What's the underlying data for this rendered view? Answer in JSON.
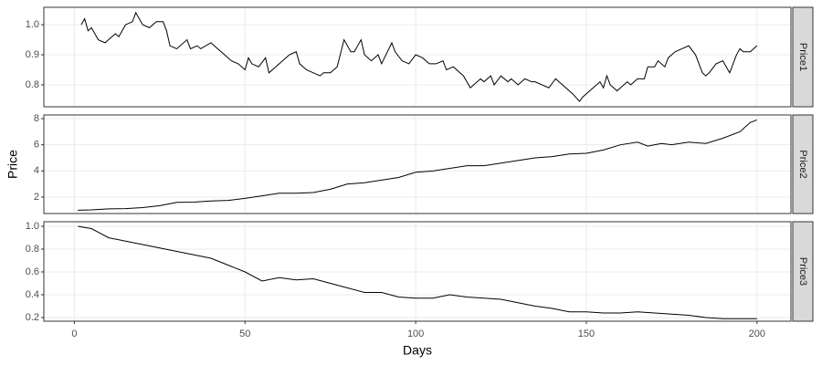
{
  "chart_data": [
    {
      "type": "line",
      "strip": "Price1",
      "color": "#000000",
      "grid": true,
      "ylim": [
        0.727,
        1.058
      ],
      "yticks": [
        0.8,
        0.9,
        {
          "value": 1,
          "label": "1.0"
        }
      ],
      "x": [
        2,
        3,
        4,
        5,
        7,
        9,
        10,
        12,
        13,
        15,
        17,
        18,
        20,
        22,
        24,
        26,
        27,
        28,
        30,
        33,
        34,
        36,
        37,
        40,
        42,
        44,
        46,
        48,
        50,
        51,
        52,
        54,
        56,
        57,
        59,
        61,
        63,
        65,
        66,
        68,
        70,
        72,
        73,
        75,
        77,
        79,
        81,
        82,
        84,
        85,
        87,
        89,
        90,
        93,
        94,
        96,
        98,
        100,
        102,
        104,
        106,
        108,
        109,
        111,
        113,
        114,
        116,
        117,
        119,
        120,
        122,
        123,
        125,
        127,
        128,
        130,
        132,
        134,
        135,
        137,
        139,
        141,
        142,
        144,
        146,
        148,
        149,
        151,
        152,
        154,
        155,
        156,
        157,
        159,
        160,
        162,
        163,
        165,
        167,
        168,
        170,
        171,
        173,
        174,
        176,
        178,
        180,
        182,
        184,
        185,
        186,
        188,
        190,
        191,
        192,
        194,
        195,
        196,
        198,
        199,
        200
      ],
      "values": [
        1.0,
        1.02,
        0.98,
        0.99,
        0.95,
        0.94,
        0.95,
        0.97,
        0.96,
        1.0,
        1.01,
        1.04,
        1.0,
        0.99,
        1.01,
        1.01,
        0.98,
        0.93,
        0.92,
        0.95,
        0.92,
        0.93,
        0.92,
        0.94,
        0.92,
        0.9,
        0.88,
        0.87,
        0.85,
        0.89,
        0.87,
        0.86,
        0.89,
        0.84,
        0.86,
        0.88,
        0.9,
        0.91,
        0.87,
        0.85,
        0.84,
        0.83,
        0.84,
        0.84,
        0.86,
        0.95,
        0.91,
        0.91,
        0.95,
        0.9,
        0.88,
        0.9,
        0.87,
        0.94,
        0.91,
        0.88,
        0.87,
        0.9,
        0.89,
        0.87,
        0.87,
        0.88,
        0.85,
        0.86,
        0.84,
        0.83,
        0.79,
        0.8,
        0.82,
        0.81,
        0.83,
        0.8,
        0.83,
        0.81,
        0.82,
        0.8,
        0.82,
        0.81,
        0.81,
        0.8,
        0.79,
        0.82,
        0.81,
        0.79,
        0.77,
        0.745,
        0.76,
        0.78,
        0.79,
        0.81,
        0.79,
        0.83,
        0.8,
        0.78,
        0.79,
        0.81,
        0.8,
        0.82,
        0.82,
        0.86,
        0.86,
        0.88,
        0.86,
        0.89,
        0.91,
        0.92,
        0.93,
        0.9,
        0.84,
        0.83,
        0.84,
        0.87,
        0.88,
        0.86,
        0.84,
        0.9,
        0.92,
        0.91,
        0.91,
        0.92,
        0.93
      ]
    },
    {
      "type": "line",
      "strip": "Price2",
      "ylabel": "Price",
      "color": "#000000",
      "grid": true,
      "ylim": [
        0.744,
        8.28
      ],
      "yticks": [
        2,
        4,
        6,
        8
      ],
      "x": [
        1,
        5,
        10,
        15,
        20,
        25,
        30,
        35,
        40,
        45,
        50,
        55,
        60,
        65,
        70,
        75,
        80,
        85,
        90,
        95,
        100,
        105,
        110,
        115,
        120,
        125,
        130,
        135,
        140,
        145,
        150,
        155,
        160,
        165,
        168,
        172,
        175,
        180,
        185,
        190,
        195,
        198,
        200
      ],
      "values": [
        1.0,
        1.02,
        1.1,
        1.12,
        1.2,
        1.35,
        1.6,
        1.62,
        1.7,
        1.75,
        1.9,
        2.1,
        2.3,
        2.3,
        2.35,
        2.6,
        3.0,
        3.1,
        3.3,
        3.5,
        3.9,
        4.0,
        4.2,
        4.4,
        4.4,
        4.6,
        4.8,
        5.0,
        5.1,
        5.3,
        5.35,
        5.6,
        6.0,
        6.2,
        5.9,
        6.1,
        6.0,
        6.2,
        6.1,
        6.5,
        7.0,
        7.7,
        7.9
      ]
    },
    {
      "type": "line",
      "strip": "Price3",
      "xlabel": "Days",
      "color": "#000000",
      "grid": true,
      "xlim": [
        -8.95,
        209.95
      ],
      "xticks": [
        0,
        50,
        100,
        150,
        200
      ],
      "ylim": [
        0.168,
        1.04
      ],
      "yticks": [
        0.2,
        0.4,
        0.6,
        0.8,
        {
          "value": 1,
          "label": "1.0"
        }
      ],
      "x": [
        1,
        5,
        10,
        15,
        20,
        25,
        30,
        35,
        40,
        45,
        50,
        55,
        60,
        65,
        70,
        75,
        80,
        85,
        90,
        95,
        100,
        105,
        110,
        115,
        120,
        125,
        130,
        135,
        140,
        145,
        150,
        155,
        160,
        165,
        170,
        175,
        180,
        185,
        190,
        195,
        200
      ],
      "values": [
        1.0,
        0.98,
        0.9,
        0.87,
        0.84,
        0.81,
        0.78,
        0.75,
        0.72,
        0.66,
        0.6,
        0.52,
        0.55,
        0.53,
        0.54,
        0.5,
        0.46,
        0.42,
        0.42,
        0.38,
        0.37,
        0.37,
        0.4,
        0.38,
        0.37,
        0.36,
        0.33,
        0.3,
        0.28,
        0.25,
        0.25,
        0.24,
        0.24,
        0.25,
        0.24,
        0.23,
        0.22,
        0.2,
        0.19,
        0.19,
        0.19
      ]
    }
  ]
}
